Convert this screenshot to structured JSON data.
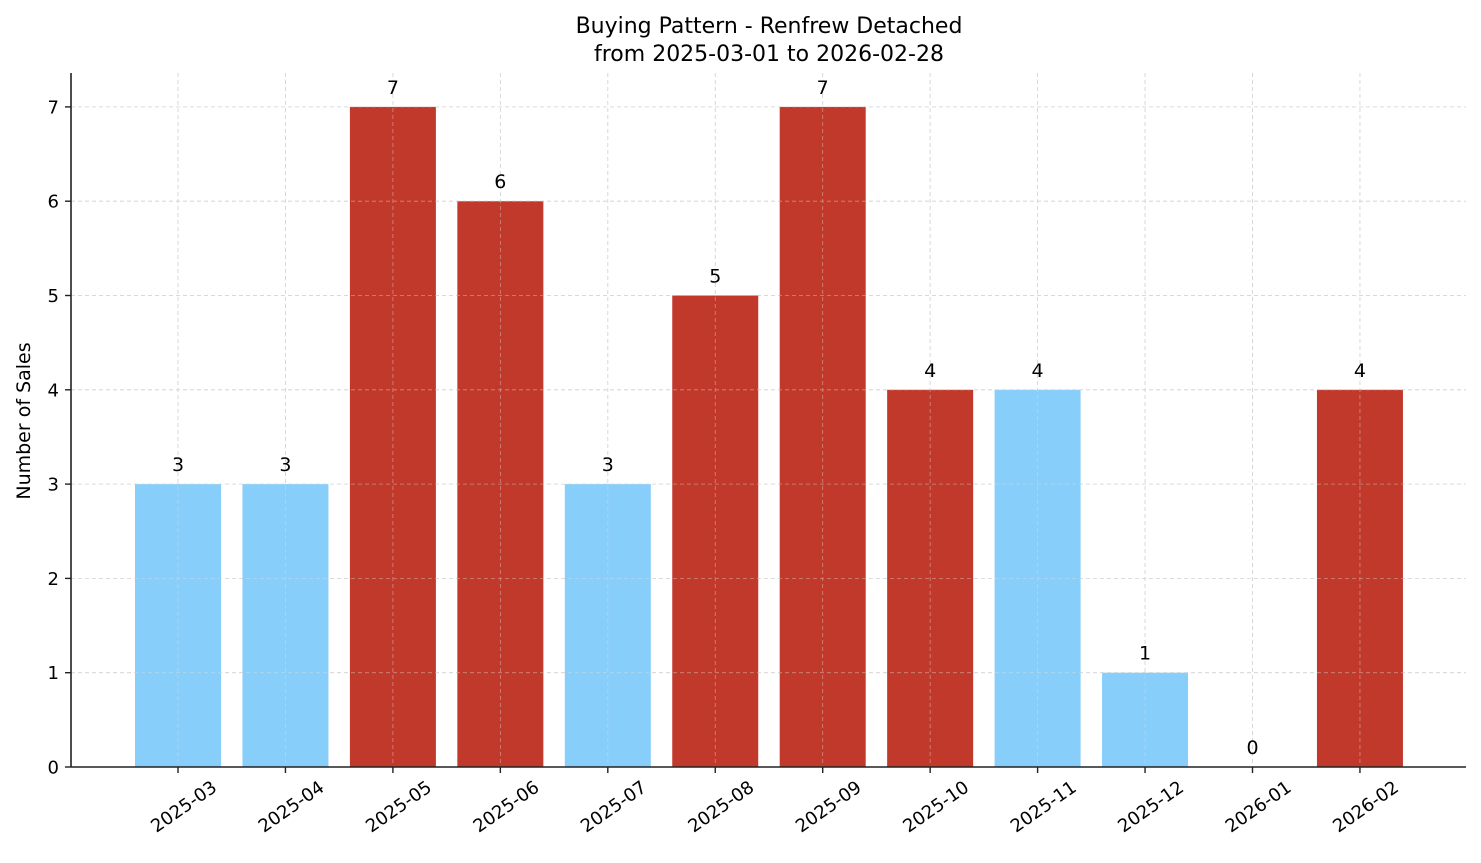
{
  "chart_data": {
    "type": "bar",
    "title": "Buying Pattern - Renfrew Detached",
    "subtitle": "from 2025-03-01 to 2026-02-28",
    "xlabel": "",
    "ylabel": "Number of Sales",
    "ylim": [
      0,
      7.35
    ],
    "yticks": [
      0,
      1,
      2,
      3,
      4,
      5,
      6,
      7
    ],
    "grid": true,
    "legend": null,
    "categories": [
      "2025-03",
      "2025-04",
      "2025-05",
      "2025-06",
      "2025-07",
      "2025-08",
      "2025-09",
      "2025-10",
      "2025-11",
      "2025-12",
      "2026-01",
      "2026-02"
    ],
    "values": [
      3,
      3,
      7,
      6,
      3,
      5,
      7,
      4,
      4,
      1,
      0,
      4
    ],
    "bar_colors": [
      "#87cefa",
      "#87cefa",
      "#c0392b",
      "#c0392b",
      "#87cefa",
      "#c0392b",
      "#c0392b",
      "#c0392b",
      "#87cefa",
      "#87cefa",
      "#87cefa",
      "#c0392b"
    ],
    "data_labels": [
      "3",
      "3",
      "7",
      "6",
      "3",
      "5",
      "7",
      "4",
      "4",
      "1",
      "0",
      "4"
    ],
    "colors": {
      "high": "#c0392b",
      "low": "#87cefa",
      "grid": "#cccccc",
      "axis": "#222222"
    }
  }
}
